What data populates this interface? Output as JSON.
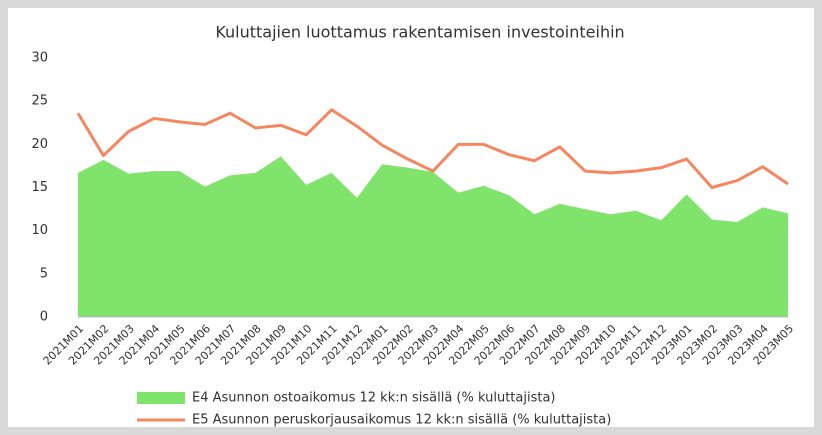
{
  "chart_data": {
    "type": "area_line",
    "title": "Kuluttajien luottamus rakentamisen investointeihin",
    "categories": [
      "2021M01",
      "2021M02",
      "2021M03",
      "2021M04",
      "2021M05",
      "2021M06",
      "2021M07",
      "2021M08",
      "2021M09",
      "2021M10",
      "2021M11",
      "2021M12",
      "2022M01",
      "2022M02",
      "2022M03",
      "2022M04",
      "2022M05",
      "2022M06",
      "2022M07",
      "2022M08",
      "2022M09",
      "2022M10",
      "2022M11",
      "2022M12",
      "2023M01",
      "2023M02",
      "2023M03",
      "2023M04",
      "2023M05"
    ],
    "series": [
      {
        "name": "E4 Asunnon ostoaikomus 12 kk:n sisällä (% kuluttajista)",
        "kind": "area",
        "color": "#80e36c",
        "values": [
          16.7,
          18.2,
          16.6,
          16.9,
          16.9,
          15.1,
          16.4,
          16.7,
          18.6,
          15.3,
          16.7,
          13.8,
          17.7,
          17.3,
          16.8,
          14.4,
          15.2,
          14.1,
          11.9,
          13.1,
          12.5,
          11.9,
          12.3,
          11.2,
          14.2,
          11.3,
          11.0,
          12.7,
          12.0
        ]
      },
      {
        "name": "E5 Asunnon peruskorjausaikomus 12 kk:n sisällä (% kuluttajista)",
        "kind": "line",
        "color": "#f4875f",
        "values": [
          23.6,
          18.7,
          21.5,
          23.0,
          22.6,
          22.3,
          23.6,
          21.9,
          22.2,
          21.1,
          24.0,
          22.1,
          19.9,
          18.3,
          16.9,
          20.0,
          20.0,
          18.8,
          18.1,
          19.7,
          16.9,
          16.7,
          16.9,
          17.3,
          18.3,
          15.0,
          15.8,
          17.4,
          15.4
        ]
      }
    ],
    "ylim": [
      0,
      30
    ],
    "yticks": [
      0,
      5,
      10,
      15,
      20,
      25,
      30
    ],
    "grid": false,
    "legend": "bottom"
  }
}
